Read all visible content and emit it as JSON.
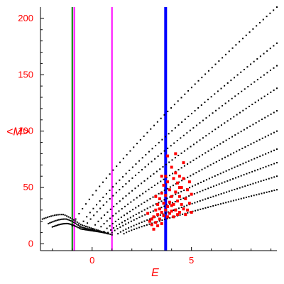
{
  "chart_data": {
    "type": "scatter",
    "title": "",
    "xlabel": "E",
    "ylabel": "<M>",
    "xlim": [
      -2.6,
      9.3
    ],
    "ylim": [
      -6,
      210
    ],
    "x_ticks": [
      0,
      5
    ],
    "y_ticks": [
      0,
      50,
      100,
      150,
      200
    ],
    "x_tick_labels": [
      "0",
      "5"
    ],
    "y_tick_labels": [
      "0",
      "50",
      "100",
      "150",
      "200"
    ],
    "grid": false,
    "legend": "none",
    "colors": {
      "black_series": "#000000",
      "red_series": "#ff0000",
      "green_line": "#008000",
      "magenta_line": "#ff00ff",
      "blue_line": "#0000ff",
      "labels": "#ff0000"
    },
    "vertical_lines": [
      {
        "x": -1.0,
        "color": "#008000"
      },
      {
        "x": -0.9,
        "color": "#ff00ff"
      },
      {
        "x": 1.0,
        "color": "#ff00ff"
      },
      {
        "x": 3.7,
        "color": "#0000ff"
      }
    ],
    "black_curves": [
      {
        "x_start": -1.0,
        "x_end": 9.3,
        "y_start": 16,
        "y_end": 210
      },
      {
        "x_start": -0.6,
        "x_end": 9.3,
        "y_start": 15,
        "y_end": 178
      },
      {
        "x_start": -0.4,
        "x_end": 9.3,
        "y_start": 14,
        "y_end": 158
      },
      {
        "x_start": 0.0,
        "x_end": 9.3,
        "y_start": 13,
        "y_end": 138
      },
      {
        "x_start": 0.3,
        "x_end": 9.3,
        "y_start": 12,
        "y_end": 118
      },
      {
        "x_start": 0.6,
        "x_end": 9.3,
        "y_start": 11,
        "y_end": 100
      },
      {
        "x_start": 0.8,
        "x_end": 9.3,
        "y_start": 10,
        "y_end": 84
      },
      {
        "x_start": 1.0,
        "x_end": 9.3,
        "y_start": 10,
        "y_end": 72
      },
      {
        "x_start": 1.3,
        "x_end": 9.3,
        "y_start": 9,
        "y_end": 60
      },
      {
        "x_start": 1.6,
        "x_end": 9.3,
        "y_start": 9,
        "y_end": 48
      }
    ],
    "black_low_curves": [
      {
        "x_start": -2.5,
        "x_end": 1.0,
        "y_start": 22,
        "y_peak": 26,
        "y_end": 8
      },
      {
        "x_start": -2.2,
        "x_end": 0.8,
        "y_start": 18,
        "y_peak": 22,
        "y_end": 9
      },
      {
        "x_start": -2.0,
        "x_end": 0.6,
        "y_start": 15,
        "y_peak": 18,
        "y_end": 10
      }
    ],
    "red_points": [
      [
        2.8,
        27
      ],
      [
        2.9,
        20
      ],
      [
        3.0,
        17
      ],
      [
        3.0,
        22
      ],
      [
        3.1,
        13
      ],
      [
        3.1,
        24
      ],
      [
        3.2,
        30
      ],
      [
        3.2,
        19
      ],
      [
        3.3,
        35
      ],
      [
        3.3,
        16
      ],
      [
        3.3,
        26
      ],
      [
        3.4,
        40
      ],
      [
        3.4,
        22
      ],
      [
        3.4,
        31
      ],
      [
        3.5,
        45
      ],
      [
        3.5,
        28
      ],
      [
        3.5,
        18
      ],
      [
        3.6,
        52
      ],
      [
        3.6,
        36
      ],
      [
        3.6,
        25
      ],
      [
        3.7,
        60
      ],
      [
        3.7,
        43
      ],
      [
        3.7,
        30
      ],
      [
        3.8,
        55
      ],
      [
        3.8,
        33
      ],
      [
        3.8,
        24
      ],
      [
        3.9,
        48
      ],
      [
        3.9,
        37
      ],
      [
        3.9,
        27
      ],
      [
        4.0,
        68
      ],
      [
        4.0,
        42
      ],
      [
        4.0,
        29
      ],
      [
        4.1,
        58
      ],
      [
        4.1,
        35
      ],
      [
        4.1,
        24
      ],
      [
        4.2,
        63
      ],
      [
        4.2,
        46
      ],
      [
        4.2,
        30
      ],
      [
        4.3,
        54
      ],
      [
        4.3,
        38
      ],
      [
        4.3,
        26
      ],
      [
        4.4,
        60
      ],
      [
        4.4,
        42
      ],
      [
        4.4,
        28
      ],
      [
        4.5,
        50
      ],
      [
        4.5,
        35
      ],
      [
        4.6,
        58
      ],
      [
        4.6,
        31
      ],
      [
        4.7,
        40
      ],
      [
        4.7,
        26
      ],
      [
        4.8,
        48
      ],
      [
        4.8,
        30
      ],
      [
        4.9,
        36
      ],
      [
        5.0,
        44
      ],
      [
        5.0,
        28
      ],
      [
        3.8,
        78
      ],
      [
        4.2,
        80
      ],
      [
        3.2,
        42
      ],
      [
        4.6,
        72
      ],
      [
        3.5,
        60
      ],
      [
        4.4,
        50
      ],
      [
        3.6,
        36
      ],
      [
        4.0,
        34
      ],
      [
        4.9,
        55
      ]
    ]
  }
}
